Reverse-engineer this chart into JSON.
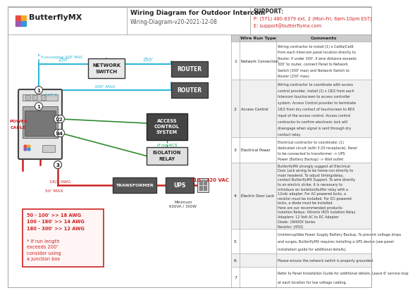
{
  "title": "Wiring Diagram for Outdoor Intercom",
  "subtitle": "Wiring-Diagram-v20-2021-12-08",
  "logo_text": "ButterflyMX",
  "support_title": "SUPPORT:",
  "support_phone": "P: (571) 480.6379 ext. 2 (Mon-Fri, 6am-10pm EST)",
  "support_email": "E: support@butterflymx.com",
  "bg_color": "#ffffff",
  "cyan_color": "#29b6d5",
  "green_color": "#2e8b2e",
  "red_color": "#cc2222",
  "dark_box": "#555555",
  "wire_run_rows": [
    {
      "num": "1",
      "type": "Network Connection",
      "comment": "Wiring contractor to install (1) x Cat6a/Cat6\nfrom each Intercom panel location directly to\nRouter. If under 300', if wire distance exceeds\n300' to router, connect Panel to Network\nSwitch (300' max) and Network Switch to\nRouter (250' max)."
    },
    {
      "num": "2",
      "type": "Access Control",
      "comment": "Wiring contractor to coordinate with access\ncontrol provider, install (1) x 18/2 from each\nIntercom touchscreen to access controller\nsystem. Access Control provider to terminate\n18/2 from dry contact of touchscreen to REX\nInput of the access control. Access control\ncontractor to confirm electronic lock will\ndisengage when signal is sent through dry\ncontact relay."
    },
    {
      "num": "3",
      "type": "Electrical Power",
      "comment": "Electrical contractor to coordinate: (1)\ndedicated circuit (with 3-20 receptacle). Panel\nto be connected to transformer -> UPS\nPower (Battery Backup) -> Wall outlet"
    },
    {
      "num": "4",
      "type": "Electric Door Lock",
      "comment": "ButterflyMX strongly suggest all Electrical\nDoor Lock wiring to be home-run directly to\nmain headend. To adjust timing/delay,\ncontact ButterflyMX Support. To wire directly\nto an electric strike, it is necessary to\nintroduce an isolation/buffer relay with a\n12vdc adapter. For AC-powered locks, a\nresistor must be installed. For DC-powered\nlocks, a diode must be installed.\nHere are our recommended products:\nIsolation Relays: Altronix IR55 Isolation Relay\nAdapters: 12 Volt AC to DC Adapter\nDiode: 1N400X Series\nResistor: [450]"
    },
    {
      "num": "5",
      "type": "",
      "comment": "Uninterruptible Power Supply Battery Backup. To prevent voltage drops\nand surges, ButterflyMX requires installing a UPS device (see panel\ninstallation guide for additional details)."
    },
    {
      "num": "6",
      "type": "",
      "comment": "Please ensure the network switch is properly grounded."
    },
    {
      "num": "7",
      "type": "",
      "comment": "Refer to Panel Installation Guide for additional details. Leave 6' service loop\nat each location for low voltage cabling."
    }
  ]
}
